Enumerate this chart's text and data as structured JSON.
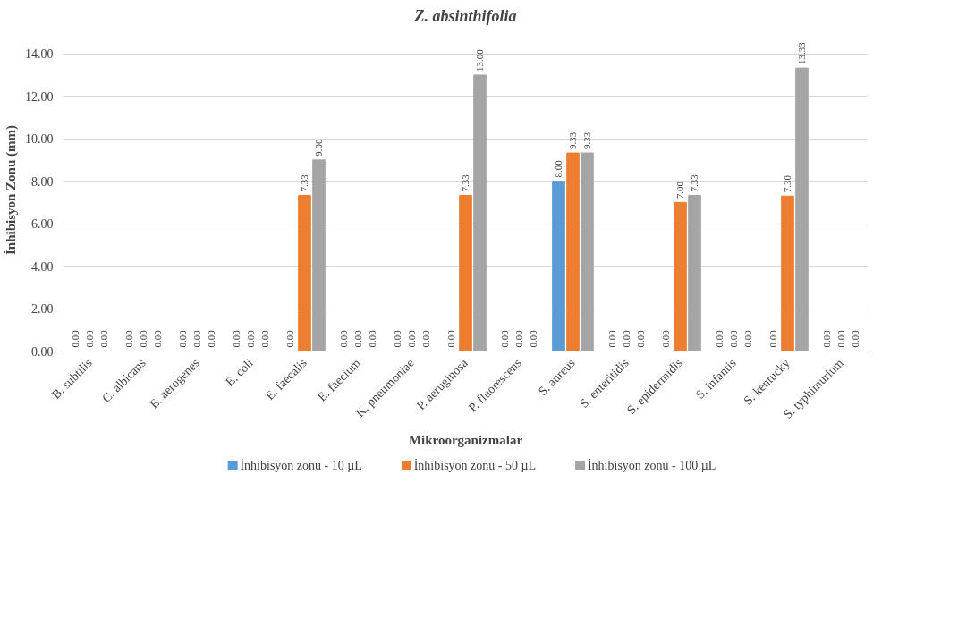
{
  "chart_data": {
    "type": "bar",
    "title": "Z. absinthifolia",
    "xlabel": "Mikroorganizmalar",
    "ylabel": "İnhibisyon Zonu (mm)",
    "categories": [
      "B. subtilis",
      "C. albicans",
      "E. aerogenes",
      "E. coli",
      "E. faecalis",
      "E. faecium",
      "K. pneumoniae",
      "P. aeruginosa",
      "P. fluorescens",
      "S. aureus",
      "S. enteritidis",
      "S. epidermidis",
      "S. infantis",
      "S. kentucky",
      "S. typhimurium"
    ],
    "series": [
      {
        "name": "İnhibisyon zonu - 10 µL",
        "color": "#5b9bd5",
        "values": [
          0,
          0,
          0,
          0,
          0,
          0,
          0,
          0,
          0,
          8.0,
          0,
          0,
          0,
          0,
          0
        ],
        "value_labels": [
          "0.00",
          "0.00",
          "0.00",
          "0.00",
          "0.00",
          "0.00",
          "0.00",
          "0.00",
          "0.00",
          "8.00",
          "0.00",
          "0.00",
          "0.00",
          "0.00",
          "0.00"
        ]
      },
      {
        "name": "İnhibisyon zonu - 50 µL",
        "color": "#ed7d31",
        "values": [
          0,
          0,
          0,
          0,
          7.33,
          0,
          0,
          7.33,
          0,
          9.33,
          0,
          7.0,
          0,
          7.3,
          0
        ],
        "value_labels": [
          "0.00",
          "0.00",
          "0.00",
          "0.00",
          "7.33",
          "0.00",
          "0.00",
          "7.33",
          "0.00",
          "9.33",
          "0.00",
          "7.00",
          "0.00",
          "7.30",
          "0.00"
        ]
      },
      {
        "name": "İnhibisyon zonu - 100 µL",
        "color": "#a5a5a5",
        "values": [
          0,
          0,
          0,
          0,
          9.0,
          0,
          0,
          13.0,
          0,
          9.33,
          0,
          7.33,
          0,
          13.33,
          0
        ],
        "value_labels": [
          "0.00",
          "0.00",
          "0.00",
          "0.00",
          "9.00",
          "0.00",
          "0.00",
          "13.00",
          "0.00",
          "9.33",
          "0.00",
          "7.33",
          "0.00",
          "13.33",
          "0.00"
        ]
      }
    ],
    "ylim": [
      0,
      14
    ],
    "yticks": [
      {
        "value": 0,
        "label": "0.00"
      },
      {
        "value": 2,
        "label": "2.00"
      },
      {
        "value": 4,
        "label": "4.00"
      },
      {
        "value": 6,
        "label": "6.00"
      },
      {
        "value": 8,
        "label": "8.00"
      },
      {
        "value": 10,
        "label": "10.00"
      },
      {
        "value": 12,
        "label": "12.00"
      },
      {
        "value": 14,
        "label": "14.00"
      }
    ],
    "grid": "y",
    "legend": "bottom"
  }
}
